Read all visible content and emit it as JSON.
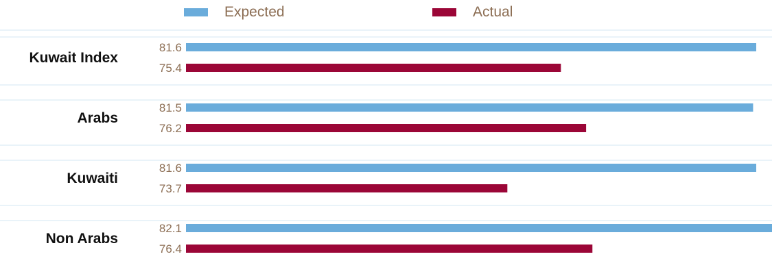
{
  "chart_data": {
    "type": "bar",
    "orientation": "horizontal",
    "categories": [
      "Kuwait Index",
      "Arabs",
      "Kuwaiti",
      "Non Arabs"
    ],
    "series": [
      {
        "name": "Expected",
        "values": [
          81.6,
          81.5,
          81.6,
          82.1
        ],
        "labels": [
          "81.6",
          "81.5",
          "81.6",
          "82.1"
        ],
        "color": "#6aacdb"
      },
      {
        "name": "Actual",
        "values": [
          75.4,
          76.2,
          73.7,
          76.4
        ],
        "labels": [
          "75.4",
          "76.2",
          "73.7",
          "76.4"
        ],
        "color": "#9b0637"
      }
    ],
    "xlim": [
      63.5,
      82.1
    ],
    "grid": true,
    "legend_position": "top",
    "title": "",
    "xlabel": "",
    "ylabel": ""
  },
  "colors": {
    "grid": "#e9f3f9",
    "value_label": "#8c6e54",
    "category_label": "#111111"
  }
}
